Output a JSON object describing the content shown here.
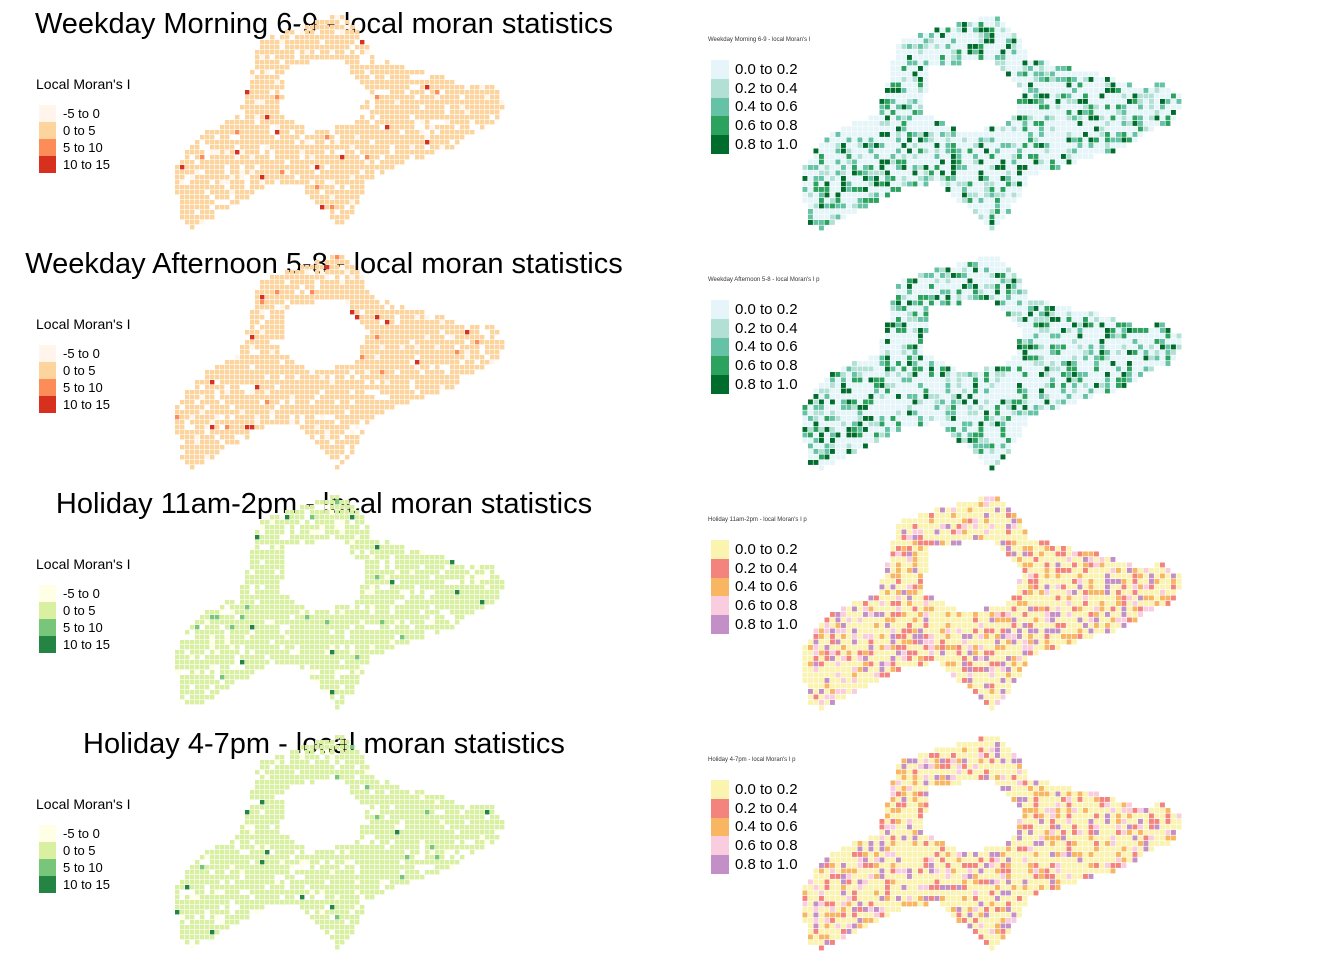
{
  "palettes": {
    "orange": [
      "#fff5eb",
      "#fdd49e",
      "#fc8d59",
      "#d7301f"
    ],
    "green": [
      "#ffffe5",
      "#d9f0a3",
      "#78c679",
      "#238443"
    ],
    "teal": [
      "#e5f5f9",
      "#b2e0d5",
      "#66c2a4",
      "#2ca25f",
      "#006d2c"
    ],
    "mixed": [
      "#fbf3b0",
      "#f4837d",
      "#f8b562",
      "#f9cce0",
      "#c28fc6"
    ]
  },
  "panels": [
    {
      "left": {
        "title": "Weekday Morning 6-9 - local moran statistics",
        "legend_title": "Local Moran's I",
        "palette": "orange",
        "items": [
          "-5 to 0",
          "0 to 5",
          "5 to 10",
          "10 to 15"
        ]
      },
      "right": {
        "title": "Weekday Morning 6-9 - local Moran's I",
        "palette": "teal",
        "items": [
          "0.0 to 0.2",
          "0.2 to 0.4",
          "0.4 to 0.6",
          "0.6 to 0.8",
          "0.8 to 1.0"
        ]
      }
    },
    {
      "left": {
        "title": "Weekday Afternoon 5-8 - local moran statistics",
        "legend_title": "Local Moran's I",
        "palette": "orange",
        "items": [
          "-5 to 0",
          "0 to 5",
          "5 to 10",
          "10 to 15"
        ]
      },
      "right": {
        "title": "Weekday Afternoon 5-8 - local Moran's I p",
        "palette": "teal",
        "items": [
          "0.0 to 0.2",
          "0.2 to 0.4",
          "0.4 to 0.6",
          "0.6 to 0.8",
          "0.8 to 1.0"
        ]
      }
    },
    {
      "left": {
        "title": "Holiday 11am-2pm - local moran statistics",
        "legend_title": "Local Moran's I",
        "palette": "green",
        "items": [
          "-5 to 0",
          "0 to 5",
          "5 to 10",
          "10 to 15"
        ]
      },
      "right": {
        "title": "Holiday 11am-2pm - local Moran's I p",
        "palette": "mixed",
        "items": [
          "0.0 to 0.2",
          "0.2 to 0.4",
          "0.4 to 0.6",
          "0.6 to 0.8",
          "0.8 to 1.0"
        ]
      }
    },
    {
      "left": {
        "title": "Holiday 4-7pm - local moran statistics",
        "legend_title": "Local Moran's I",
        "palette": "green",
        "items": [
          "-5 to 0",
          "0 to 5",
          "5 to 10",
          "10 to 15"
        ]
      },
      "right": {
        "title": "Holiday 4-7pm - local Moran's I p",
        "palette": "mixed",
        "items": [
          "0.0 to 0.2",
          "0.2 to 0.4",
          "0.4 to 0.6",
          "0.6 to 0.8",
          "0.8 to 1.0"
        ]
      }
    }
  ]
}
